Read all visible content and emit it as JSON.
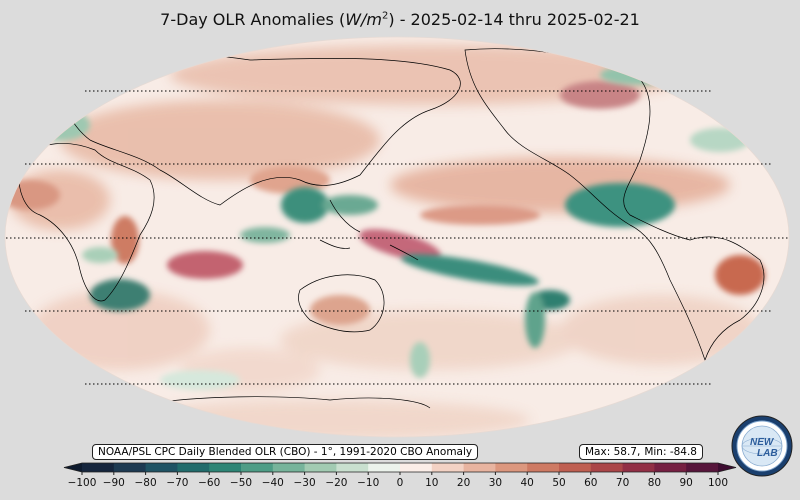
{
  "title": {
    "prefix": "7-Day OLR Anomalies (",
    "unit_var": "W/m",
    "unit_exp": "2",
    "suffix": ") - 2025-02-14 thru 2025-02-21"
  },
  "source_label": "NOAA/PSL CPC Daily Blended OLR (CBO) - 1°, 1991-2020 CBO Anomaly",
  "stats": {
    "max_label": "Max: 58.7,",
    "min_label": "Min: -84.8"
  },
  "colorbar": {
    "min": -100,
    "max": 100,
    "ticks": [
      "−100",
      "−90",
      "−80",
      "−70",
      "−60",
      "−50",
      "−40",
      "−30",
      "−20",
      "−10",
      "0",
      "10",
      "20",
      "30",
      "40",
      "50",
      "60",
      "70",
      "80",
      "90",
      "100"
    ],
    "colors": [
      "#15253d",
      "#1d3a52",
      "#1f5364",
      "#216c6c",
      "#2d8576",
      "#4e9d86",
      "#77b49b",
      "#a2cbb2",
      "#c9e0cf",
      "#ecf3ec",
      "#fbeee8",
      "#f3d2c4",
      "#e8b4a0",
      "#dc977e",
      "#ce7a63",
      "#bf5f51",
      "#ab4648",
      "#922f45",
      "#762042",
      "#57153b"
    ]
  },
  "logo": {
    "line1": "NEW",
    "line2": "LAB"
  },
  "colors": {
    "page_bg": "#dcdcdc",
    "map_base": "#f8ece6"
  }
}
